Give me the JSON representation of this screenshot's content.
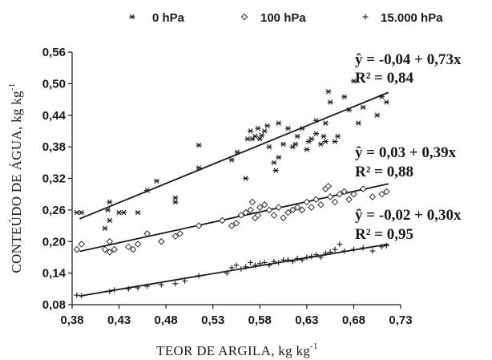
{
  "chart_data": {
    "type": "scatter",
    "xlabel": "TEOR DE ARGILA, kg kg",
    "xlabel_sup": "-1",
    "ylabel": "CONTEÚDO DE ÁGUA, kg kg",
    "ylabel_sup": "-1",
    "xlim": [
      0.38,
      0.73
    ],
    "ylim": [
      0.08,
      0.56
    ],
    "xticks": [
      "0,38",
      "0,43",
      "0,48",
      "0,53",
      "0,58",
      "0,63",
      "0,68",
      "0,73"
    ],
    "yticks": [
      "0,08",
      "0,14",
      "0,20",
      "0,26",
      "0,32",
      "0,38",
      "0,44",
      "0,50",
      "0,56"
    ],
    "legend_position": "top",
    "series": [
      {
        "name": "0 hPa",
        "marker": "asterisk",
        "equation": "ŷ = -0,04 + 0,73x",
        "r2": "R² = 0,84",
        "fit": {
          "intercept": -0.04,
          "slope": 0.73
        },
        "points": [
          [
            0.385,
            0.255
          ],
          [
            0.39,
            0.255
          ],
          [
            0.415,
            0.225
          ],
          [
            0.418,
            0.26
          ],
          [
            0.42,
            0.275
          ],
          [
            0.42,
            0.24
          ],
          [
            0.43,
            0.255
          ],
          [
            0.435,
            0.255
          ],
          [
            0.45,
            0.255
          ],
          [
            0.46,
            0.297
          ],
          [
            0.47,
            0.315
          ],
          [
            0.49,
            0.283
          ],
          [
            0.49,
            0.275
          ],
          [
            0.515,
            0.383
          ],
          [
            0.515,
            0.34
          ],
          [
            0.55,
            0.355
          ],
          [
            0.556,
            0.37
          ],
          [
            0.565,
            0.32
          ],
          [
            0.567,
            0.395
          ],
          [
            0.57,
            0.41
          ],
          [
            0.572,
            0.395
          ],
          [
            0.575,
            0.4
          ],
          [
            0.578,
            0.415
          ],
          [
            0.58,
            0.395
          ],
          [
            0.582,
            0.402
          ],
          [
            0.585,
            0.41
          ],
          [
            0.588,
            0.42
          ],
          [
            0.59,
            0.38
          ],
          [
            0.595,
            0.35
          ],
          [
            0.597,
            0.335
          ],
          [
            0.6,
            0.36
          ],
          [
            0.6,
            0.425
          ],
          [
            0.605,
            0.385
          ],
          [
            0.61,
            0.415
          ],
          [
            0.615,
            0.38
          ],
          [
            0.618,
            0.385
          ],
          [
            0.62,
            0.4
          ],
          [
            0.625,
            0.415
          ],
          [
            0.63,
            0.375
          ],
          [
            0.632,
            0.39
          ],
          [
            0.635,
            0.395
          ],
          [
            0.64,
            0.405
          ],
          [
            0.64,
            0.43
          ],
          [
            0.645,
            0.385
          ],
          [
            0.648,
            0.4
          ],
          [
            0.65,
            0.425
          ],
          [
            0.65,
            0.39
          ],
          [
            0.653,
            0.485
          ],
          [
            0.655,
            0.465
          ],
          [
            0.66,
            0.39
          ],
          [
            0.663,
            0.4
          ],
          [
            0.67,
            0.475
          ],
          [
            0.675,
            0.45
          ],
          [
            0.68,
            0.505
          ],
          [
            0.685,
            0.425
          ],
          [
            0.69,
            0.455
          ],
          [
            0.705,
            0.44
          ],
          [
            0.71,
            0.475
          ],
          [
            0.715,
            0.465
          ]
        ]
      },
      {
        "name": "100 hPa",
        "marker": "diamond",
        "equation": "ŷ = 0,03 + 0,39x",
        "r2": "R² = 0,88",
        "fit": {
          "intercept": 0.03,
          "slope": 0.39
        },
        "points": [
          [
            0.385,
            0.185
          ],
          [
            0.39,
            0.195
          ],
          [
            0.415,
            0.185
          ],
          [
            0.42,
            0.2
          ],
          [
            0.42,
            0.18
          ],
          [
            0.425,
            0.185
          ],
          [
            0.44,
            0.19
          ],
          [
            0.445,
            0.185
          ],
          [
            0.45,
            0.195
          ],
          [
            0.46,
            0.215
          ],
          [
            0.475,
            0.2
          ],
          [
            0.49,
            0.21
          ],
          [
            0.495,
            0.215
          ],
          [
            0.515,
            0.23
          ],
          [
            0.54,
            0.24
          ],
          [
            0.55,
            0.23
          ],
          [
            0.555,
            0.235
          ],
          [
            0.56,
            0.25
          ],
          [
            0.565,
            0.255
          ],
          [
            0.57,
            0.26
          ],
          [
            0.572,
            0.275
          ],
          [
            0.575,
            0.245
          ],
          [
            0.578,
            0.25
          ],
          [
            0.58,
            0.265
          ],
          [
            0.585,
            0.27
          ],
          [
            0.59,
            0.26
          ],
          [
            0.595,
            0.25
          ],
          [
            0.6,
            0.265
          ],
          [
            0.605,
            0.245
          ],
          [
            0.61,
            0.255
          ],
          [
            0.615,
            0.26
          ],
          [
            0.62,
            0.265
          ],
          [
            0.625,
            0.26
          ],
          [
            0.63,
            0.275
          ],
          [
            0.635,
            0.265
          ],
          [
            0.64,
            0.28
          ],
          [
            0.645,
            0.27
          ],
          [
            0.65,
            0.3
          ],
          [
            0.653,
            0.305
          ],
          [
            0.655,
            0.285
          ],
          [
            0.66,
            0.275
          ],
          [
            0.665,
            0.29
          ],
          [
            0.67,
            0.295
          ],
          [
            0.675,
            0.28
          ],
          [
            0.68,
            0.29
          ],
          [
            0.69,
            0.3
          ],
          [
            0.7,
            0.285
          ],
          [
            0.71,
            0.29
          ],
          [
            0.715,
            0.295
          ]
        ]
      },
      {
        "name": "15.000 hPa",
        "marker": "plus",
        "equation": "ŷ = -0,02 + 0,30x",
        "r2": "R² = 0,95",
        "fit": {
          "intercept": -0.02,
          "slope": 0.3
        },
        "points": [
          [
            0.385,
            0.098
          ],
          [
            0.39,
            0.097
          ],
          [
            0.42,
            0.105
          ],
          [
            0.425,
            0.108
          ],
          [
            0.44,
            0.11
          ],
          [
            0.45,
            0.112
          ],
          [
            0.46,
            0.115
          ],
          [
            0.475,
            0.118
          ],
          [
            0.49,
            0.12
          ],
          [
            0.5,
            0.125
          ],
          [
            0.515,
            0.135
          ],
          [
            0.545,
            0.14
          ],
          [
            0.55,
            0.15
          ],
          [
            0.555,
            0.155
          ],
          [
            0.56,
            0.148
          ],
          [
            0.565,
            0.152
          ],
          [
            0.57,
            0.16
          ],
          [
            0.575,
            0.155
          ],
          [
            0.58,
            0.158
          ],
          [
            0.585,
            0.16
          ],
          [
            0.59,
            0.155
          ],
          [
            0.595,
            0.162
          ],
          [
            0.6,
            0.16
          ],
          [
            0.605,
            0.165
          ],
          [
            0.61,
            0.165
          ],
          [
            0.615,
            0.162
          ],
          [
            0.62,
            0.168
          ],
          [
            0.625,
            0.165
          ],
          [
            0.63,
            0.17
          ],
          [
            0.635,
            0.172
          ],
          [
            0.64,
            0.175
          ],
          [
            0.645,
            0.17
          ],
          [
            0.65,
            0.178
          ],
          [
            0.655,
            0.18
          ],
          [
            0.66,
            0.185
          ],
          [
            0.665,
            0.195
          ],
          [
            0.67,
            0.182
          ],
          [
            0.68,
            0.185
          ],
          [
            0.69,
            0.188
          ],
          [
            0.7,
            0.182
          ],
          [
            0.71,
            0.19
          ],
          [
            0.715,
            0.192
          ]
        ]
      }
    ]
  }
}
